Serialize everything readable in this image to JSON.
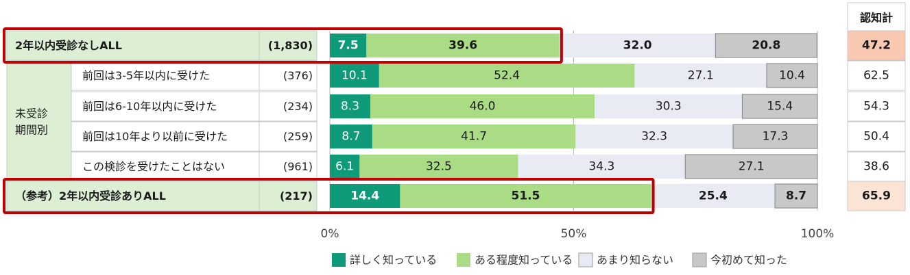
{
  "chart_data": {
    "type": "bar",
    "stacked": true,
    "orientation": "horizontal",
    "percent_scale": true,
    "xlim": [
      0,
      100
    ],
    "x_ticks": [
      "0%",
      "50%",
      "100%"
    ],
    "group_label": "未受診\n期間別",
    "side_header": "認知計",
    "rows": [
      {
        "label": "2年以内受診なしALL",
        "n": "(1,830)",
        "values": [
          7.5,
          39.6,
          32.0,
          20.8
        ],
        "total": "47.2",
        "emphasis": true,
        "grouped": false
      },
      {
        "label": "前回は3-5年以内に受けた",
        "n": "(376)",
        "values": [
          10.1,
          52.4,
          27.1,
          10.4
        ],
        "total": "62.5",
        "emphasis": false,
        "grouped": true
      },
      {
        "label": "前回は6-10年以内に受けた",
        "n": "(234)",
        "values": [
          8.3,
          46.0,
          30.3,
          15.4
        ],
        "total": "54.3",
        "emphasis": false,
        "grouped": true
      },
      {
        "label": "前回は10年より以前に受けた",
        "n": "(259)",
        "values": [
          8.7,
          41.7,
          32.3,
          17.3
        ],
        "total": "50.4",
        "emphasis": false,
        "grouped": true
      },
      {
        "label": "この検診を受けたことはない",
        "n": "(961)",
        "values": [
          6.1,
          32.5,
          34.3,
          27.1
        ],
        "total": "38.6",
        "emphasis": false,
        "grouped": true
      },
      {
        "label": "（参考）2年以内受診ありALL",
        "n": "(217)",
        "values": [
          14.4,
          51.5,
          25.4,
          8.7
        ],
        "total": "65.9",
        "emphasis": true,
        "grouped": false
      }
    ],
    "series": [
      {
        "name": "詳しく知っている",
        "color": "#0f9b7a",
        "text_color": "#ffffff"
      },
      {
        "name": "ある程度知っている",
        "color": "#a9dc84",
        "text_color": "#1a1a1a"
      },
      {
        "name": "あまり知らない",
        "color": "#e8ebf3",
        "text_color": "#1a1a1a"
      },
      {
        "name": "今初めて知った",
        "color": "#c8c8c8",
        "text_color": "#1a1a1a"
      }
    ],
    "colors": {
      "header_fill": "#dcefd4",
      "total_fill_first": "#f9c8b1",
      "total_fill_last": "#fbe3d6",
      "highlight_border": "#c00000",
      "grid": "#bbbbbb"
    }
  }
}
